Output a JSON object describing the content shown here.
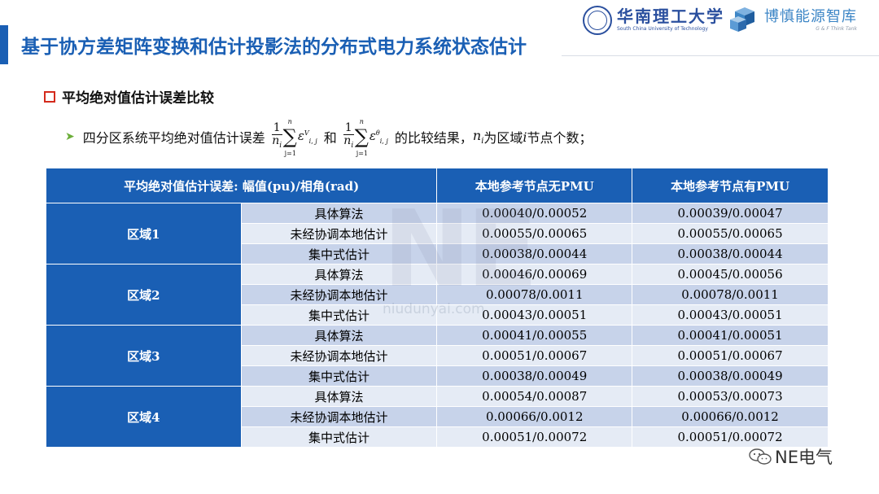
{
  "slide": {
    "title": "基于协方差矩阵变换和估计投影法的分布式电力系统状态估计",
    "logos": {
      "university_name": "华南理工大学",
      "university_en": "South China University of Technology",
      "think_tank_name": "博慎能源智库",
      "think_tank_en": "G & F Think Tank"
    },
    "section_title": "平均绝对值估计误差比较",
    "bullet": {
      "prefix": "四分区系统平均绝对值估计误差",
      "connector": "和",
      "suffix_a": "的比较结果，",
      "var_n": "n",
      "var_i": "i",
      "suffix_b": "为区域",
      "suffix_c": "节点个数；",
      "formula_one": "1",
      "formula_sum_lower": "j=1",
      "formula_sup_v": "V",
      "formula_sup_theta": "θ",
      "formula_sub": "i, j"
    },
    "watermark": {
      "text": "NE",
      "url": "niudunyai.com"
    },
    "badge": "NE电气"
  },
  "table": {
    "headers": [
      "平均绝对值估计误差: 幅值(pu)/相角(rad)",
      "本地参考节点无PMU",
      "本地参考节点有PMU"
    ],
    "regions": [
      {
        "name": "区域1",
        "rows": [
          {
            "method": "具体算法",
            "no_pmu": "0.00040/0.00052",
            "pmu": "0.00039/0.00047"
          },
          {
            "method": "未经协调本地估计",
            "no_pmu": "0.00055/0.00065",
            "pmu": "0.00055/0.00065"
          },
          {
            "method": "集中式估计",
            "no_pmu": "0.00038/0.00044",
            "pmu": "0.00038/0.00044"
          }
        ]
      },
      {
        "name": "区域2",
        "rows": [
          {
            "method": "具体算法",
            "no_pmu": "0.00046/0.00069",
            "pmu": "0.00045/0.00056"
          },
          {
            "method": "未经协调本地估计",
            "no_pmu": "0.00078/0.0011",
            "pmu": "0.00078/0.0011"
          },
          {
            "method": "集中式估计",
            "no_pmu": "0.00043/0.00051",
            "pmu": "0.00043/0.00051"
          }
        ]
      },
      {
        "name": "区域3",
        "rows": [
          {
            "method": "具体算法",
            "no_pmu": "0.00041/0.00055",
            "pmu": "0.00041/0.00051"
          },
          {
            "method": "未经协调本地估计",
            "no_pmu": "0.00051/0.00067",
            "pmu": "0.00051/0.00067"
          },
          {
            "method": "集中式估计",
            "no_pmu": "0.00038/0.00049",
            "pmu": "0.00038/0.00049"
          }
        ]
      },
      {
        "name": "区域4",
        "rows": [
          {
            "method": "具体算法",
            "no_pmu": "0.00054/0.00087",
            "pmu": "0.00053/0.00073"
          },
          {
            "method": "未经协调本地估计",
            "no_pmu": "0.00066/0.0012",
            "pmu": "0.00066/0.0012"
          },
          {
            "method": "集中式估计",
            "no_pmu": "0.00051/0.00072",
            "pmu": "0.00051/0.00072"
          }
        ]
      }
    ]
  },
  "colors": {
    "accent": "#1a5fb4",
    "row_dark": "#c7d3ea",
    "row_light": "#e5ebf5",
    "bullet_marker": "#d42a1c",
    "arrow": "#6cae3a"
  }
}
